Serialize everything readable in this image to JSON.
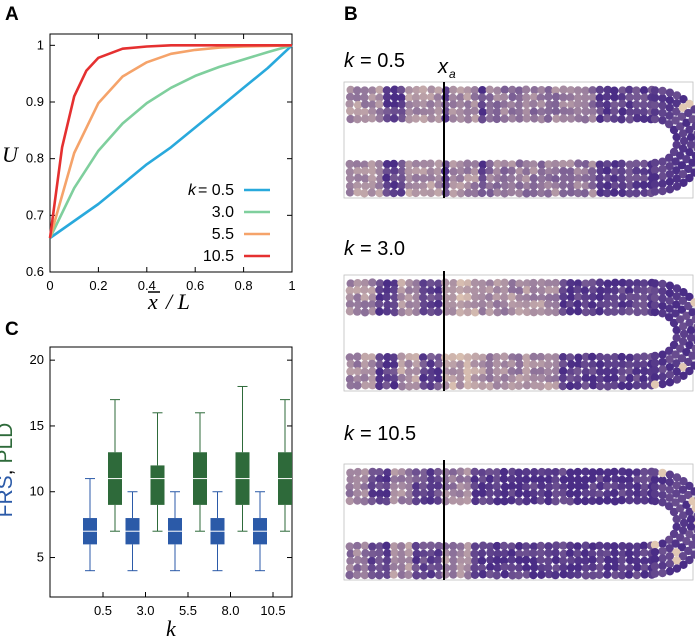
{
  "colors": {
    "k_0_5": "#29a9dc",
    "k_3_0": "#7fcf9d",
    "k_5_5": "#f5a36a",
    "k_10_5": "#e53030",
    "frs": "#2b5aa8",
    "pld": "#2e6a3a",
    "particle_dark": "#4a2d86",
    "particle_light": "#f2d9b8"
  },
  "panel_a": {
    "letter": "A",
    "ylabel": "U",
    "xlabel_bar": "x",
    "xlabel_rest": "/ L",
    "legend_k_prefix": "k",
    "legend_eq": "= 0.5"
  },
  "panel_b": {
    "letter": "B",
    "xa_main": "x",
    "xa_sub": "a",
    "k_symbol": "k",
    "labels": [
      "= 0.5",
      "= 3.0",
      "= 10.5"
    ]
  },
  "panel_c": {
    "letter": "C",
    "ylabel_frs": "FRS",
    "ylabel_sep": ",",
    "ylabel_pld": "PLD",
    "xlabel": "k"
  },
  "chart_data": [
    {
      "type": "line",
      "xlim": [
        0,
        1
      ],
      "ylim": [
        0.6,
        1.02
      ],
      "xticks": [
        "0",
        "0.2",
        "0.4",
        "0.6",
        "0.8",
        "1"
      ],
      "yticks": [
        "0.6",
        "0.7",
        "0.8",
        "0.9",
        "1"
      ],
      "legend_position": "bottom-right",
      "grid": false,
      "series": [
        {
          "name": "0.5",
          "k": 0.5,
          "x": [
            0,
            0.1,
            0.2,
            0.3,
            0.4,
            0.5,
            0.6,
            0.7,
            0.8,
            0.9,
            1.0
          ],
          "y": [
            0.66,
            0.69,
            0.72,
            0.755,
            0.79,
            0.82,
            0.855,
            0.89,
            0.925,
            0.96,
            1.0
          ]
        },
        {
          "name": "3.0",
          "k": 3.0,
          "x": [
            0,
            0.1,
            0.2,
            0.3,
            0.4,
            0.5,
            0.6,
            0.7,
            0.8,
            0.9,
            1.0
          ],
          "y": [
            0.66,
            0.748,
            0.814,
            0.862,
            0.898,
            0.925,
            0.946,
            0.962,
            0.975,
            0.988,
            1.0
          ]
        },
        {
          "name": "5.5",
          "k": 5.5,
          "x": [
            0,
            0.1,
            0.2,
            0.3,
            0.4,
            0.5,
            0.6,
            0.7,
            0.8,
            0.9,
            1.0
          ],
          "y": [
            0.66,
            0.81,
            0.898,
            0.945,
            0.97,
            0.985,
            0.992,
            0.996,
            0.998,
            0.999,
            1.0
          ]
        },
        {
          "name": "10.5",
          "k": 10.5,
          "x": [
            0,
            0.05,
            0.1,
            0.15,
            0.2,
            0.3,
            0.4,
            0.5,
            0.6,
            0.7,
            0.8,
            0.9,
            1.0
          ],
          "y": [
            0.66,
            0.82,
            0.91,
            0.955,
            0.978,
            0.994,
            0.998,
            1.0,
            1.0,
            1.0,
            1.0,
            1.0,
            1.0
          ]
        }
      ]
    },
    {
      "type": "box",
      "categories": [
        "0.5",
        "3.0",
        "5.5",
        "8.0",
        "10.5"
      ],
      "ylim": [
        2,
        21
      ],
      "yticks": [
        "5",
        "10",
        "15",
        "20"
      ],
      "series": [
        {
          "name": "FRS",
          "boxes": [
            {
              "min": 4,
              "q1": 6,
              "median": 7,
              "q3": 8,
              "max": 11
            },
            {
              "min": 4,
              "q1": 6,
              "median": 7,
              "q3": 8,
              "max": 10
            },
            {
              "min": 4,
              "q1": 6,
              "median": 7,
              "q3": 8,
              "max": 10
            },
            {
              "min": 4,
              "q1": 6,
              "median": 7,
              "q3": 8,
              "max": 10
            },
            {
              "min": 4,
              "q1": 6,
              "median": 7,
              "q3": 8,
              "max": 10
            }
          ]
        },
        {
          "name": "PLD",
          "boxes": [
            {
              "min": 7,
              "q1": 9,
              "median": 11,
              "q3": 13,
              "max": 17
            },
            {
              "min": 7,
              "q1": 9,
              "median": 11,
              "q3": 12,
              "max": 16
            },
            {
              "min": 7,
              "q1": 9,
              "median": 11,
              "q3": 13,
              "max": 16
            },
            {
              "min": 7,
              "q1": 9,
              "median": 11,
              "q3": 13,
              "max": 18
            },
            {
              "min": 7,
              "q1": 9,
              "median": 11,
              "q3": 13,
              "max": 17
            }
          ]
        }
      ]
    }
  ],
  "tracks": [
    {
      "key": "k_0_5",
      "bands_top": [
        [
          0.0,
          0.12,
          0.55
        ],
        [
          0.12,
          0.2,
          0.1
        ],
        [
          0.2,
          0.3,
          0.6
        ],
        [
          0.3,
          0.34,
          0.15
        ],
        [
          0.34,
          0.42,
          0.55
        ],
        [
          0.42,
          0.46,
          0.1
        ],
        [
          0.46,
          0.8,
          0.45
        ],
        [
          0.8,
          1.0,
          0.1
        ]
      ],
      "seed": 11
    },
    {
      "key": "k_3_0",
      "bands_top": [
        [
          0.0,
          0.1,
          0.55
        ],
        [
          0.1,
          0.16,
          0.1
        ],
        [
          0.16,
          0.24,
          0.6
        ],
        [
          0.24,
          0.3,
          0.15
        ],
        [
          0.3,
          0.44,
          0.7
        ],
        [
          0.44,
          0.7,
          0.55
        ],
        [
          0.7,
          1.0,
          0.08
        ]
      ],
      "seed": 23
    },
    {
      "key": "k_10_5",
      "bands_top": [
        [
          0.0,
          0.08,
          0.45
        ],
        [
          0.08,
          0.14,
          0.1
        ],
        [
          0.14,
          0.22,
          0.55
        ],
        [
          0.22,
          0.3,
          0.15
        ],
        [
          0.3,
          0.4,
          0.5
        ],
        [
          0.4,
          1.0,
          0.05
        ]
      ],
      "seed": 37
    }
  ]
}
